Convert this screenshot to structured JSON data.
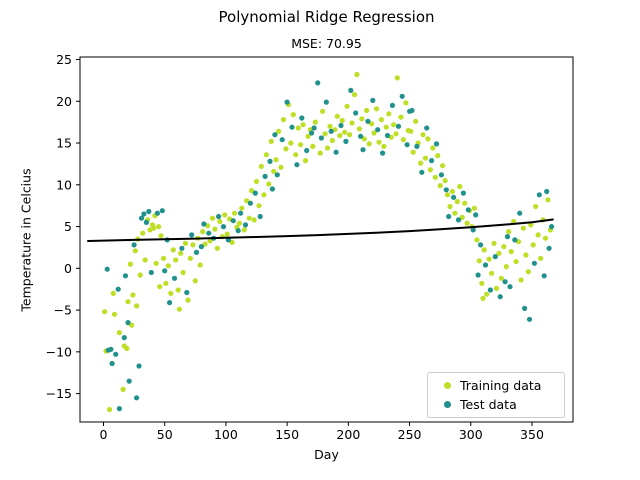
{
  "figure": {
    "background": "#ffffff"
  },
  "chart_data": {
    "type": "scatter",
    "title": "Polynomial Ridge Regression",
    "subtitle": "MSE: 70.95",
    "xlabel": "Day",
    "ylabel": "Temperature in Celcius",
    "xlim": [
      -19.2,
      383.5
    ],
    "ylim": [
      -18.4,
      25.3
    ],
    "grid": false,
    "legend_position": "lower right",
    "x_ticks": {
      "values": [
        0,
        50,
        100,
        150,
        200,
        250,
        300,
        350
      ],
      "labels": [
        "0",
        "50",
        "100",
        "150",
        "200",
        "250",
        "300",
        "350"
      ]
    },
    "y_ticks": {
      "values": [
        25,
        20,
        15,
        10,
        5,
        0,
        -5,
        -10,
        -15
      ],
      "labels": [
        "25",
        "20",
        "15",
        "10",
        "5",
        "0",
        "−5",
        "−10",
        "−15"
      ]
    },
    "series": [
      {
        "name": "Training data",
        "color": "#bddf26",
        "marker": "dot",
        "points": [
          [
            1,
            -5.2
          ],
          [
            2,
            -9.9
          ],
          [
            5,
            -16.9
          ],
          [
            8,
            -3.0
          ],
          [
            9,
            -5.5
          ],
          [
            13,
            -7.7
          ],
          [
            16,
            -14.5
          ],
          [
            17,
            -9.3
          ],
          [
            19,
            -9.6
          ],
          [
            20,
            -4.0
          ],
          [
            22,
            0.5
          ],
          [
            23,
            -6.8
          ],
          [
            24,
            -3.2
          ],
          [
            26,
            2.1
          ],
          [
            27,
            -4.5
          ],
          [
            28,
            3.5
          ],
          [
            30,
            -0.8
          ],
          [
            32,
            4.2
          ],
          [
            34,
            1.0
          ],
          [
            36,
            5.8
          ],
          [
            38,
            4.6
          ],
          [
            40,
            5.2
          ],
          [
            41,
            4.8
          ],
          [
            42,
            6.3
          ],
          [
            43,
            0.6
          ],
          [
            45,
            5.0
          ],
          [
            46,
            -2.2
          ],
          [
            47,
            3.9
          ],
          [
            49,
            1.2
          ],
          [
            51,
            -1.8
          ],
          [
            53,
            0.3
          ],
          [
            55,
            -3.0
          ],
          [
            57,
            2.2
          ],
          [
            59,
            1.0
          ],
          [
            61,
            -2.6
          ],
          [
            62,
            -4.9
          ],
          [
            63,
            1.8
          ],
          [
            65,
            -0.5
          ],
          [
            67,
            3.0
          ],
          [
            69,
            -3.8
          ],
          [
            71,
            1.2
          ],
          [
            73,
            2.8
          ],
          [
            75,
            -1.5
          ],
          [
            77,
            3.6
          ],
          [
            79,
            0.4
          ],
          [
            81,
            4.4
          ],
          [
            83,
            2.9
          ],
          [
            85,
            5.1
          ],
          [
            87,
            3.3
          ],
          [
            89,
            6.0
          ],
          [
            91,
            4.7
          ],
          [
            93,
            2.4
          ],
          [
            95,
            5.6
          ],
          [
            97,
            3.8
          ],
          [
            99,
            6.4
          ],
          [
            101,
            4.1
          ],
          [
            103,
            5.9
          ],
          [
            105,
            3.1
          ],
          [
            107,
            6.6
          ],
          [
            109,
            4.9
          ],
          [
            111,
            5.4
          ],
          [
            113,
            7.2
          ],
          [
            115,
            4.6
          ],
          [
            117,
            8.1
          ],
          [
            119,
            6.0
          ],
          [
            121,
            9.3
          ],
          [
            123,
            5.8
          ],
          [
            125,
            10.4
          ],
          [
            127,
            7.5
          ],
          [
            129,
            12.2
          ],
          [
            131,
            8.8
          ],
          [
            133,
            13.6
          ],
          [
            135,
            10.1
          ],
          [
            137,
            15.2
          ],
          [
            139,
            11.6
          ],
          [
            141,
            13.0
          ],
          [
            143,
            16.4
          ],
          [
            145,
            12.1
          ],
          [
            147,
            17.8
          ],
          [
            149,
            14.3
          ],
          [
            151,
            19.6
          ],
          [
            153,
            15.0
          ],
          [
            155,
            18.4
          ],
          [
            157,
            13.6
          ],
          [
            159,
            16.8
          ],
          [
            161,
            14.8
          ],
          [
            163,
            17.2
          ],
          [
            165,
            12.9
          ],
          [
            167,
            15.8
          ],
          [
            169,
            16.6
          ],
          [
            171,
            14.6
          ],
          [
            173,
            17.5
          ],
          [
            177,
            13.8
          ],
          [
            179,
            18.8
          ],
          [
            181,
            16.1
          ],
          [
            183,
            14.4
          ],
          [
            185,
            17.0
          ],
          [
            187,
            15.3
          ],
          [
            189,
            16.6
          ],
          [
            191,
            18.2
          ],
          [
            193,
            15.9
          ],
          [
            195,
            17.7
          ],
          [
            197,
            16.3
          ],
          [
            199,
            19.4
          ],
          [
            201,
            16.0
          ],
          [
            203,
            17.4
          ],
          [
            205,
            20.8
          ],
          [
            207,
            23.2
          ],
          [
            209,
            16.7
          ],
          [
            211,
            17.9
          ],
          [
            213,
            15.5
          ],
          [
            215,
            18.9
          ],
          [
            217,
            14.9
          ],
          [
            219,
            17.3
          ],
          [
            221,
            16.2
          ],
          [
            223,
            19.1
          ],
          [
            225,
            15.1
          ],
          [
            227,
            17.8
          ],
          [
            229,
            14.6
          ],
          [
            231,
            16.9
          ],
          [
            233,
            18.5
          ],
          [
            235,
            15.7
          ],
          [
            237,
            17.2
          ],
          [
            239,
            16.1
          ],
          [
            240,
            22.8
          ],
          [
            243,
            18.1
          ],
          [
            245,
            15.4
          ],
          [
            247,
            19.8
          ],
          [
            249,
            16.5
          ],
          [
            251,
            16.4
          ],
          [
            253,
            13.9
          ],
          [
            255,
            17.6
          ],
          [
            257,
            15.0
          ],
          [
            259,
            12.6
          ],
          [
            261,
            16.0
          ],
          [
            263,
            13.2
          ],
          [
            265,
            15.5
          ],
          [
            267,
            11.8
          ],
          [
            269,
            14.4
          ],
          [
            271,
            10.9
          ],
          [
            273,
            13.5
          ],
          [
            275,
            9.9
          ],
          [
            277,
            12.3
          ],
          [
            279,
            10.5
          ],
          [
            281,
            8.8
          ],
          [
            283,
            7.4
          ],
          [
            285,
            9.2
          ],
          [
            287,
            6.6
          ],
          [
            289,
            8.0
          ],
          [
            291,
            9.8
          ],
          [
            293,
            6.1
          ],
          [
            295,
            7.8
          ],
          [
            297,
            5.4
          ],
          [
            299,
            6.9
          ],
          [
            301,
            5.0
          ],
          [
            303,
            7.2
          ],
          [
            305,
            3.4
          ],
          [
            307,
            0.9
          ],
          [
            309,
            -1.8
          ],
          [
            310,
            -3.6
          ],
          [
            311,
            2.2
          ],
          [
            313,
            -3.1
          ],
          [
            315,
            1.1
          ],
          [
            317,
            -0.6
          ],
          [
            319,
            3.0
          ],
          [
            321,
            -2.4
          ],
          [
            323,
            1.8
          ],
          [
            325,
            -1.2
          ],
          [
            327,
            2.6
          ],
          [
            329,
            0.2
          ],
          [
            331,
            4.4
          ],
          [
            333,
            2.0
          ],
          [
            335,
            5.6
          ],
          [
            337,
            0.8
          ],
          [
            339,
            3.2
          ],
          [
            341,
            -1.4
          ],
          [
            343,
            4.8
          ],
          [
            345,
            1.6
          ],
          [
            347,
            -0.4
          ],
          [
            349,
            5.2
          ],
          [
            351,
            2.8
          ],
          [
            353,
            7.4
          ],
          [
            355,
            4.0
          ],
          [
            357,
            1.2
          ],
          [
            359,
            5.8
          ],
          [
            361,
            3.6
          ],
          [
            363,
            8.2
          ],
          [
            365,
            4.6
          ]
        ]
      },
      {
        "name": "Test data",
        "color": "#21918c",
        "marker": "dot",
        "points": [
          [
            3,
            -0.1
          ],
          [
            4,
            -9.8
          ],
          [
            6,
            -9.7
          ],
          [
            7,
            -11.4
          ],
          [
            10,
            -10.3
          ],
          [
            12,
            -2.5
          ],
          [
            13,
            -16.8
          ],
          [
            17,
            -8.3
          ],
          [
            18,
            -0.9
          ],
          [
            20,
            -6.5
          ],
          [
            21,
            -13.5
          ],
          [
            25,
            2.8
          ],
          [
            27,
            -15.5
          ],
          [
            29,
            -11.7
          ],
          [
            31,
            6.0
          ],
          [
            33,
            6.5
          ],
          [
            35,
            5.5
          ],
          [
            37,
            6.8
          ],
          [
            39,
            -0.5
          ],
          [
            44,
            6.6
          ],
          [
            48,
            6.9
          ],
          [
            50,
            -0.3
          ],
          [
            52,
            3.4
          ],
          [
            54,
            -4.1
          ],
          [
            58,
            -1.2
          ],
          [
            64,
            2.4
          ],
          [
            68,
            -2.9
          ],
          [
            72,
            4.0
          ],
          [
            76,
            1.9
          ],
          [
            80,
            2.6
          ],
          [
            82,
            5.3
          ],
          [
            86,
            4.2
          ],
          [
            90,
            3.6
          ],
          [
            94,
            6.2
          ],
          [
            98,
            5.0
          ],
          [
            102,
            3.4
          ],
          [
            106,
            5.7
          ],
          [
            110,
            4.5
          ],
          [
            112,
            6.6
          ],
          [
            116,
            5.2
          ],
          [
            120,
            7.8
          ],
          [
            124,
            9.0
          ],
          [
            128,
            6.2
          ],
          [
            132,
            11.0
          ],
          [
            136,
            12.8
          ],
          [
            138,
            9.5
          ],
          [
            140,
            16.0
          ],
          [
            142,
            11.2
          ],
          [
            146,
            15.4
          ],
          [
            150,
            19.9
          ],
          [
            154,
            16.9
          ],
          [
            158,
            12.4
          ],
          [
            162,
            18.0
          ],
          [
            166,
            14.1
          ],
          [
            170,
            16.2
          ],
          [
            172,
            16.8
          ],
          [
            175,
            22.2
          ],
          [
            178,
            15.6
          ],
          [
            182,
            19.9
          ],
          [
            186,
            16.4
          ],
          [
            190,
            13.9
          ],
          [
            194,
            17.1
          ],
          [
            198,
            15.2
          ],
          [
            202,
            21.3
          ],
          [
            206,
            18.6
          ],
          [
            210,
            15.8
          ],
          [
            212,
            14.2
          ],
          [
            216,
            17.6
          ],
          [
            220,
            20.1
          ],
          [
            224,
            16.6
          ],
          [
            228,
            13.8
          ],
          [
            232,
            15.9
          ],
          [
            236,
            19.5
          ],
          [
            241,
            17.0
          ],
          [
            244,
            20.6
          ],
          [
            248,
            14.8
          ],
          [
            250,
            18.8
          ],
          [
            252,
            18.9
          ],
          [
            256,
            14.6
          ],
          [
            260,
            11.5
          ],
          [
            264,
            16.8
          ],
          [
            268,
            12.9
          ],
          [
            272,
            14.9
          ],
          [
            276,
            11.2
          ],
          [
            280,
            9.4
          ],
          [
            282,
            6.2
          ],
          [
            286,
            8.5
          ],
          [
            290,
            5.8
          ],
          [
            294,
            9.0
          ],
          [
            298,
            7.0
          ],
          [
            302,
            4.6
          ],
          [
            304,
            6.4
          ],
          [
            306,
            -0.8
          ],
          [
            308,
            2.8
          ],
          [
            312,
            0.4
          ],
          [
            316,
            -2.6
          ],
          [
            320,
            1.4
          ],
          [
            324,
            -3.4
          ],
          [
            328,
            -1.6
          ],
          [
            330,
            3.8
          ],
          [
            332,
            -2.2
          ],
          [
            336,
            3.4
          ],
          [
            340,
            6.6
          ],
          [
            344,
            -4.8
          ],
          [
            348,
            -6.1
          ],
          [
            352,
            0.6
          ],
          [
            356,
            8.8
          ],
          [
            360,
            -0.9
          ],
          [
            362,
            9.2
          ],
          [
            364,
            2.4
          ],
          [
            366,
            5.0
          ]
        ]
      }
    ],
    "regression_line": {
      "color": "#000000",
      "width": 2,
      "points": [
        [
          -12.7,
          3.27
        ],
        [
          0,
          3.32
        ],
        [
          25,
          3.4
        ],
        [
          50,
          3.48
        ],
        [
          75,
          3.56
        ],
        [
          100,
          3.65
        ],
        [
          125,
          3.75
        ],
        [
          150,
          3.86
        ],
        [
          175,
          3.98
        ],
        [
          200,
          4.12
        ],
        [
          225,
          4.28
        ],
        [
          250,
          4.46
        ],
        [
          275,
          4.67
        ],
        [
          300,
          4.92
        ],
        [
          325,
          5.2
        ],
        [
          350,
          5.52
        ],
        [
          367,
          5.85
        ]
      ]
    }
  }
}
